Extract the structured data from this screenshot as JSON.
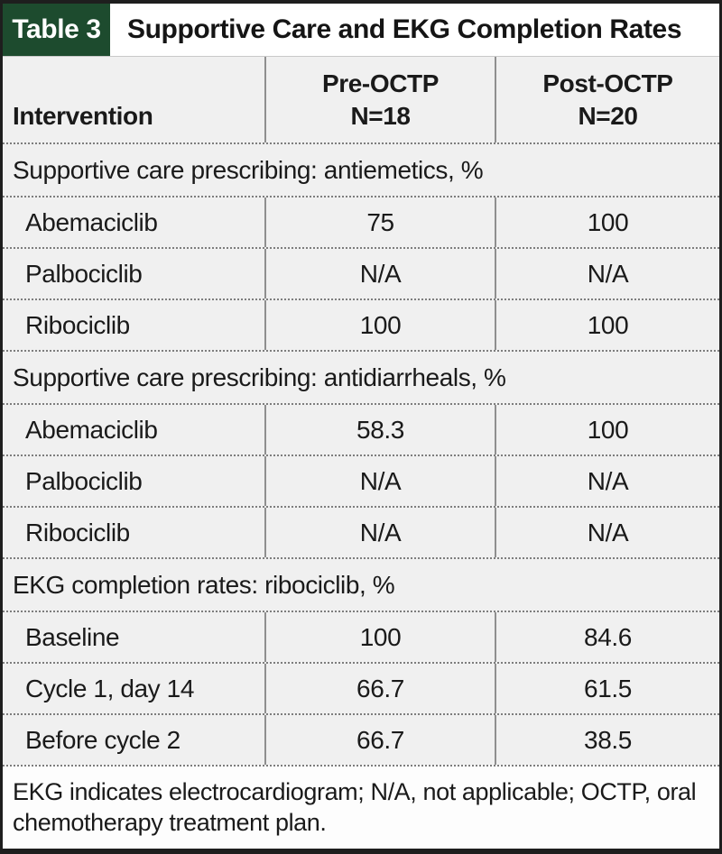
{
  "header": {
    "tag": "Table 3",
    "title": "Supportive Care and EKG Completion Rates"
  },
  "columns": {
    "intervention": "Intervention",
    "pre": [
      "Pre-OCTP",
      "N=18"
    ],
    "post": [
      "Post-OCTP",
      "N=20"
    ]
  },
  "sections": [
    {
      "title": "Supportive care prescribing: antiemetics, %",
      "rows": [
        {
          "label": "Abemaciclib",
          "pre": "75",
          "post": "100"
        },
        {
          "label": "Palbociclib",
          "pre": "N/A",
          "post": "N/A"
        },
        {
          "label": "Ribociclib",
          "pre": "100",
          "post": "100"
        }
      ]
    },
    {
      "title": "Supportive care prescribing: antidiarrheals, %",
      "rows": [
        {
          "label": "Abemaciclib",
          "pre": "58.3",
          "post": "100"
        },
        {
          "label": "Palbociclib",
          "pre": "N/A",
          "post": "N/A"
        },
        {
          "label": "Ribociclib",
          "pre": "N/A",
          "post": "N/A"
        }
      ]
    },
    {
      "title": "EKG completion rates: ribociclib, %",
      "rows": [
        {
          "label": "Baseline",
          "pre": "100",
          "post": "84.6"
        },
        {
          "label": "Cycle 1, day 14",
          "pre": "66.7",
          "post": "61.5"
        },
        {
          "label": "Before cycle 2",
          "pre": "66.7",
          "post": "38.5"
        }
      ]
    }
  ],
  "footnote": {
    "lines": [
      "EKG indicates electrocardiogram; N/A, not applicable; OCTP, oral",
      "chemotherapy treatment plan."
    ]
  },
  "colors": {
    "accent_green": "#1d4b2e",
    "frame_dark": "#1e1e1e",
    "row_background": "#f0f0f0",
    "grid_line": "#8f8f8f",
    "dotted_line": "#7d7d7d",
    "text": "#1a1a1a"
  }
}
